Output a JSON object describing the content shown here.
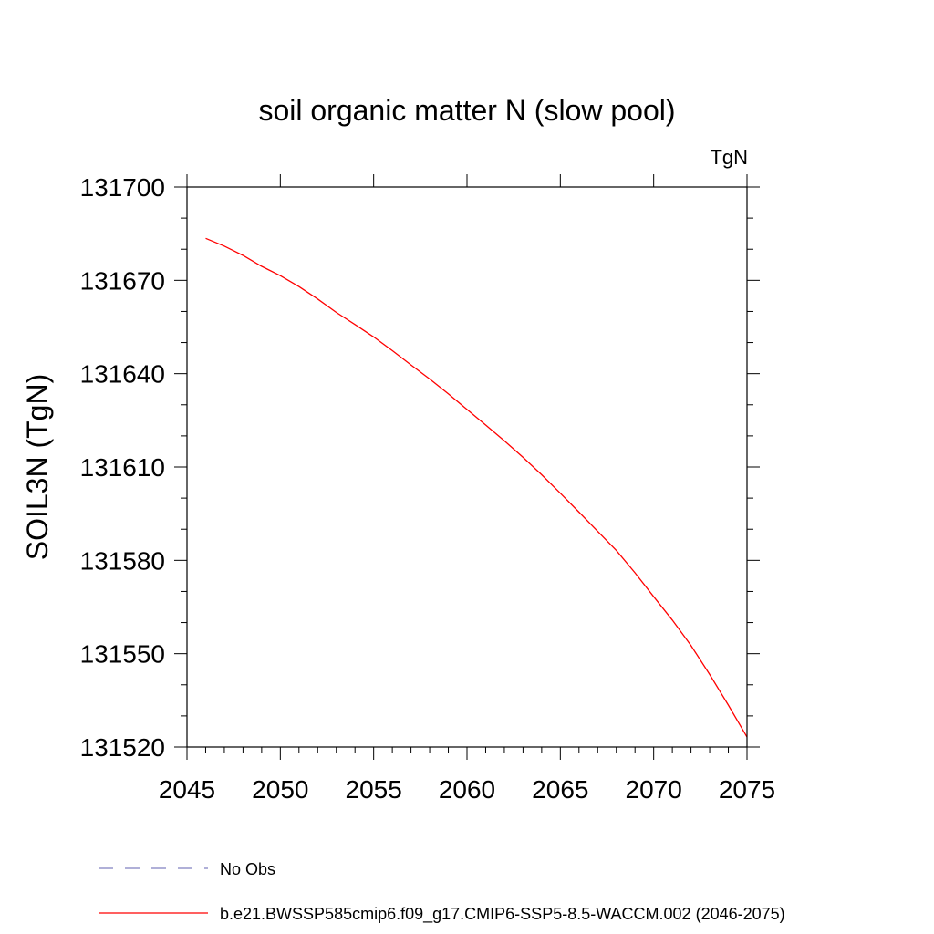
{
  "chart_data": {
    "type": "line",
    "title": "soil organic matter N (slow pool)",
    "units_label": "TgN",
    "xlabel": "",
    "ylabel": "SOIL3N  (TgN)",
    "xlim": [
      2045,
      2075
    ],
    "ylim": [
      131520,
      131700
    ],
    "x_ticks": [
      2045,
      2050,
      2055,
      2060,
      2065,
      2070,
      2075
    ],
    "y_ticks": [
      131520,
      131550,
      131580,
      131610,
      131640,
      131670,
      131700
    ],
    "y_minor_step": 10,
    "x_minor_step": 1,
    "grid": false,
    "series": [
      {
        "name": "b.e21.BWSSP585cmip6.f09_g17.CMIP6-SSP5-8.5-WACCM.002 (2046-2075)",
        "color": "#ff0000",
        "dash": "solid",
        "x": [
          2046,
          2047,
          2048,
          2049,
          2050,
          2051,
          2052,
          2053,
          2054,
          2055,
          2056,
          2057,
          2058,
          2059,
          2060,
          2061,
          2062,
          2063,
          2064,
          2065,
          2066,
          2067,
          2068,
          2069,
          2070,
          2071,
          2072,
          2073,
          2074,
          2075
        ],
        "values": [
          131683.5,
          131681.0,
          131678.0,
          131674.5,
          131671.5,
          131668.0,
          131664.0,
          131659.7,
          131655.8,
          131651.8,
          131647.4,
          131642.8,
          131638.3,
          131633.5,
          131628.5,
          131623.5,
          131618.4,
          131613.1,
          131607.5,
          131601.6,
          131595.5,
          131589.3,
          131583.2,
          131576.0,
          131568.3,
          131560.8,
          131552.6,
          131543.3,
          131533.5,
          131523.2
        ]
      }
    ],
    "legend": [
      {
        "label": "No Obs",
        "color": "#8080c0",
        "dash": "dashed"
      },
      {
        "label": "b.e21.BWSSP585cmip6.f09_g17.CMIP6-SSP5-8.5-WACCM.002 (2046-2075)",
        "color": "#ff0000",
        "dash": "solid"
      }
    ],
    "legend_placement": "bottom"
  }
}
